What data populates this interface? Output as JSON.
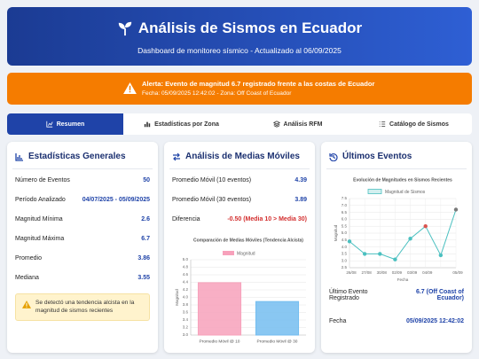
{
  "header": {
    "title": "Análisis de Sismos en Ecuador",
    "subtitle": "Dashboard de monitoreo sísmico - Actualizado al 06/09/2025"
  },
  "alert": {
    "title": "Alerta: Evento de magnitud 6.7 registrado frente a las costas de Ecuador",
    "detail": "Fecha: 05/09/2025 12:42:02 - Zona: Off Coast of Ecuador"
  },
  "tabs": [
    "Resumen",
    "Estadísticas por Zona",
    "Análisis RFM",
    "Catálogo de Sismos"
  ],
  "stats": {
    "title": "Estadísticas Generales",
    "rows": [
      {
        "label": "Número de Eventos",
        "value": 50
      },
      {
        "label": "Período Analizado",
        "value": "04/07/2025 - 05/09/2025"
      },
      {
        "label": "Magnitud Mínima",
        "value": 2.6
      },
      {
        "label": "Magnitud Máxima",
        "value": 6.7
      },
      {
        "label": "Promedio",
        "value": 3.86
      },
      {
        "label": "Mediana",
        "value": 3.55
      }
    ],
    "note": "Se detectó una tendencia alcista en la magnitud de sismos recientes"
  },
  "moving_averages": {
    "title": "Análisis de Medias Móviles",
    "rows": [
      {
        "label": "Promedio Móvil (10 eventos)",
        "value": 4.39
      },
      {
        "label": "Promedio Móvil (30 eventos)",
        "value": 3.89
      },
      {
        "label": "Diferencia",
        "value": "-0.50 (Media 10 > Media 30)"
      }
    ],
    "chart": {
      "type": "bar",
      "title": "Comparación de Medias Móviles (Tendencia Alcista)",
      "categories": [
        "Promedio Móvil @ 10",
        "Promedio Móvil @ 30"
      ],
      "series": [
        {
          "name": "Magnitud",
          "colors": [
            "#f7a1bb",
            "#74bdf0"
          ],
          "values": [
            4.39,
            3.89
          ]
        }
      ],
      "ylim": [
        3.0,
        5.0
      ],
      "yticks": [
        {
          "value": 3,
          "label": "3.0"
        },
        3.2,
        3.4,
        3.6,
        3.8,
        {
          "value": 4,
          "label": "4.0"
        },
        4.2,
        4.4,
        4.6,
        4.8,
        {
          "value": 5,
          "label": "5.0"
        }
      ],
      "y_label": "Magnitud",
      "grid": true
    }
  },
  "latest": {
    "title": "Últimos Eventos",
    "chart": {
      "type": "line",
      "title": "Evolución de Magnitudes en Sismos Recientes",
      "categories": [
        "26/08",
        "27/08",
        "30/08",
        "02/09",
        "03/09",
        "04/09",
        null,
        "05/09"
      ],
      "series": [
        {
          "name": "Magnitud de Sismos",
          "color": "#4bc0c0",
          "point_colors": [
            "#4bc0c0",
            "#4bc0c0",
            "#4bc0c0",
            "#4bc0c0",
            "#4bc0c0",
            "#d9534f",
            "#4bc0c0",
            "#7a7a7a"
          ],
          "values": [
            4.4,
            3.5,
            3.5,
            3.1,
            4.6,
            5.5,
            3.4,
            6.7
          ]
        }
      ],
      "ylim": [
        2.5,
        7.5
      ],
      "yticks": [
        2.5,
        {
          "value": 3,
          "label": "3.0"
        },
        3.5,
        {
          "value": 4,
          "label": "4.0"
        },
        4.5,
        {
          "value": 5,
          "label": "5.0"
        },
        5.5,
        {
          "value": 6,
          "label": "6.0"
        },
        6.5,
        {
          "value": 7,
          "label": "7.0"
        },
        7.5
      ],
      "x_label": "Fecha",
      "y_label": "Magnitud",
      "grid": true
    },
    "rows": [
      {
        "label": "Último Evento Registrado",
        "value": "6.7 (Off Coast of Ecuador)"
      },
      {
        "label": "Fecha",
        "value": "05/09/2025 12:42:02"
      }
    ]
  }
}
